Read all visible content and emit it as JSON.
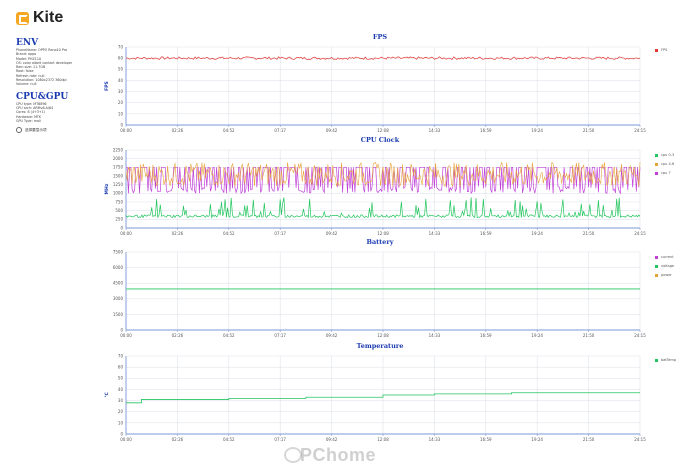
{
  "app": {
    "logo_text": "Kite",
    "watermark": "PChome"
  },
  "env": {
    "title": "ENV",
    "lines": [
      "PhoneName: OPPO Reno10 Pro",
      "Brand: oppo",
      "Model: PHZ110",
      "OS: color albeit contact developer",
      "Ram size: 11.7GB",
      "Root: false",
      "Refresh rate: null",
      "Resolution: 1080x2372 360dpi",
      "Volume: null"
    ]
  },
  "cpugpu": {
    "title": "CPU&GPU",
    "lines": [
      "CPU type: MT6896",
      "CPU arch: ARMv8-A/64",
      "Cores: 8 (4+3+1)",
      "Hardware: MTK",
      "GPU Type: mali"
    ]
  },
  "option": {
    "label": "选择要显示项"
  },
  "x_ticks": [
    "00:00",
    "02:26",
    "04:52",
    "07:17",
    "09:42",
    "12:08",
    "14:33",
    "16:59",
    "19:24",
    "21:50",
    "24:15"
  ],
  "colors": {
    "fps": "#e53935",
    "cpu03": "#22c55e",
    "cpu46": "#e8a23a",
    "cpu7": "#c040d8",
    "current": "#c040d8",
    "voltage": "#22c55e",
    "power": "#e8a23a",
    "battemp": "#22c55e",
    "grid": "#dfe3ea",
    "axis": "#7c98d8"
  },
  "chart_data": [
    {
      "type": "line",
      "title": "FPS",
      "ylabel": "FPS",
      "ylim": [
        0,
        70
      ],
      "y_ticks": [
        "70",
        "60",
        "50",
        "40",
        "30",
        "20",
        "10",
        "0"
      ],
      "series": [
        {
          "name": "FPS",
          "baseline": 60,
          "jitter": 1.2
        }
      ]
    },
    {
      "type": "line",
      "title": "CPU Clock",
      "ylabel": "MHz",
      "ylim": [
        0,
        2250
      ],
      "y_ticks": [
        "2250",
        "2000",
        "1750",
        "1500",
        "1250",
        "1000",
        "750",
        "500",
        "250",
        "0"
      ],
      "series": [
        {
          "name": "cpu 0-3",
          "low": 300,
          "high": 800
        },
        {
          "name": "cpu 4-6",
          "low": 1200,
          "high": 1900
        },
        {
          "name": "cpu 7",
          "low": 1000,
          "high": 1750
        }
      ]
    },
    {
      "type": "line",
      "title": "Battery",
      "ylabel": "",
      "ylim": [
        0,
        7500
      ],
      "y_ticks": [
        "7500",
        "6000",
        "4500",
        "3000",
        "1500",
        "0"
      ],
      "series": [
        {
          "name": "current",
          "values": []
        },
        {
          "name": "voltage",
          "baseline": 3950
        },
        {
          "name": "power",
          "values": []
        }
      ]
    },
    {
      "type": "line",
      "title": "Temperature",
      "ylabel": "℃",
      "ylim": [
        0,
        70
      ],
      "y_ticks": [
        "70",
        "60",
        "50",
        "40",
        "30",
        "20",
        "10",
        "0"
      ],
      "series": [
        {
          "name": "batTemp",
          "steps": [
            [
              0,
              28
            ],
            [
              0.03,
              31
            ],
            [
              0.2,
              32
            ],
            [
              0.35,
              33
            ],
            [
              0.5,
              35
            ],
            [
              0.6,
              36
            ],
            [
              0.75,
              37
            ],
            [
              1.0,
              37
            ]
          ]
        }
      ]
    }
  ]
}
